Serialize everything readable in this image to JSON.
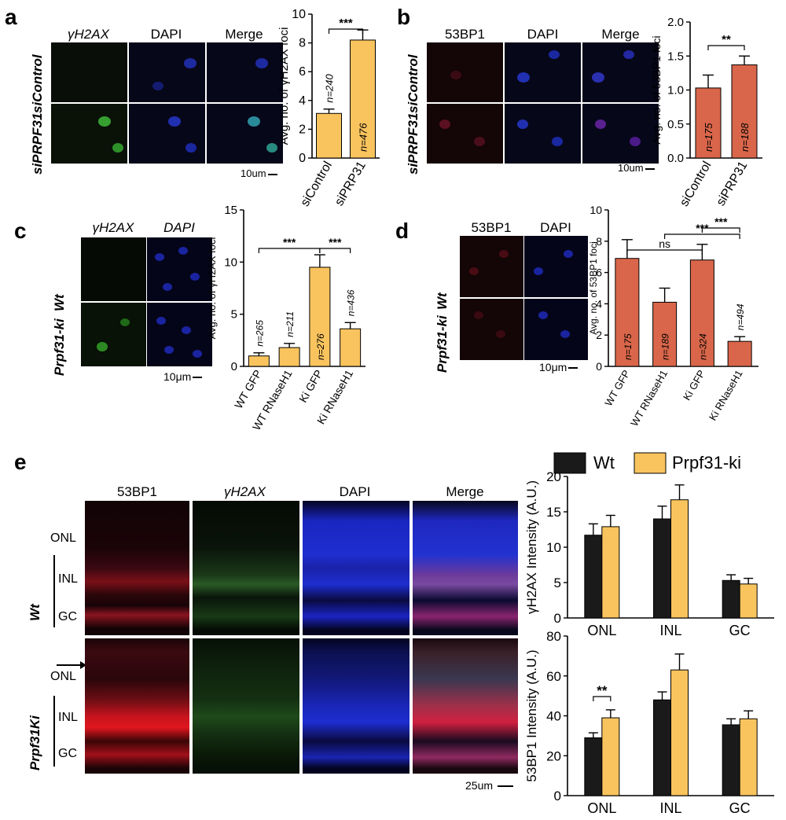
{
  "panel_a": {
    "label": "a",
    "headers": [
      "γH2AX",
      "DAPI",
      "Merge"
    ],
    "rows": [
      "siControl",
      "siPRPF31"
    ],
    "scalebar": "10um"
  },
  "panel_b": {
    "label": "b",
    "headers": [
      "53BP1",
      "DAPI",
      "Merge"
    ],
    "rows": [
      "siControl",
      "siPRPF31"
    ],
    "scalebar": "10um"
  },
  "panel_c": {
    "label": "c",
    "headers": [
      "γH2AX",
      "DAPI"
    ],
    "rows": [
      "Wt",
      "Prpf31-ki"
    ],
    "scalebar": "10μm"
  },
  "panel_d": {
    "label": "d",
    "headers": [
      "53BP1",
      "DAPI"
    ],
    "rows": [
      "Wt",
      "Prpf31-ki"
    ],
    "scalebar": "10μm"
  },
  "panel_e": {
    "label": "e",
    "headers": [
      "53BP1",
      "γH2AX",
      "DAPI",
      "Merge"
    ],
    "rows": [
      "Wt",
      "Prpf31Ki"
    ],
    "layers": [
      "ONL",
      "INL",
      "GC"
    ],
    "scalebar": "25um"
  },
  "chart_data": [
    {
      "type": "bar",
      "panel": "a",
      "categories": [
        "siControl",
        "siPRP31"
      ],
      "values": [
        3.1,
        8.2
      ],
      "errors": [
        0.3,
        0.7
      ],
      "n_labels": [
        "n=240",
        "n=476"
      ],
      "ylabel": "Avg. no. of γH2AX foci",
      "ylim": [
        0,
        10
      ],
      "yticks": [
        0,
        2,
        4,
        6,
        8,
        10
      ],
      "significance": [
        {
          "from": 0,
          "to": 1,
          "label": "***"
        }
      ],
      "color": "#f9c45e"
    },
    {
      "type": "bar",
      "panel": "b",
      "categories": [
        "siControl",
        "siPRP31"
      ],
      "values": [
        1.03,
        1.37
      ],
      "errors": [
        0.19,
        0.13
      ],
      "n_labels": [
        "n=175",
        "n=188"
      ],
      "ylabel": "Avg. no. of 53BP1 foci",
      "ylim": [
        0,
        2.0
      ],
      "yticks": [
        0.0,
        0.5,
        1.0,
        1.5,
        2.0
      ],
      "significance": [
        {
          "from": 0,
          "to": 1,
          "label": "**"
        }
      ],
      "color": "#d9664a"
    },
    {
      "type": "bar",
      "panel": "c",
      "categories": [
        "WT GFP",
        "WT RNaseH1",
        "Ki GFP",
        "Ki RNaseH1"
      ],
      "values": [
        1.0,
        1.8,
        9.5,
        3.6
      ],
      "errors": [
        0.3,
        0.4,
        1.2,
        0.6
      ],
      "n_labels": [
        "n=265",
        "n=211",
        "n=276",
        "n=436"
      ],
      "ylabel": "Avg. no. of γH2AX foci",
      "ylim": [
        0,
        15
      ],
      "yticks": [
        0,
        5,
        10,
        15
      ],
      "significance": [
        {
          "from": 0,
          "to": 2,
          "label": "***"
        },
        {
          "from": 2,
          "to": 3,
          "label": "***"
        }
      ],
      "color": "#f9c45e"
    },
    {
      "type": "bar",
      "panel": "d",
      "categories": [
        "WT GFP",
        "WT RNaseH1",
        "Ki GFP",
        "Ki RNaseH1"
      ],
      "values": [
        6.9,
        4.1,
        6.8,
        1.6
      ],
      "errors": [
        1.2,
        0.9,
        1.0,
        0.3
      ],
      "n_labels": [
        "n=175",
        "n=189",
        "n=324",
        "n=494"
      ],
      "ylabel": "Avg. no. of 53BP1 foci",
      "ylim": [
        0,
        10
      ],
      "yticks": [
        0,
        2,
        4,
        6,
        8,
        10
      ],
      "significance": [
        {
          "from": 0,
          "to": 2,
          "label": "ns"
        },
        {
          "from": 1,
          "to": 3,
          "label": "***"
        },
        {
          "from": 2,
          "to": 3,
          "label": "***"
        }
      ],
      "color": "#d9664a"
    },
    {
      "type": "bar",
      "panel": "e-top",
      "categories": [
        "ONL",
        "INL",
        "GC"
      ],
      "series": [
        {
          "name": "Wt",
          "values": [
            11.7,
            14.0,
            5.3
          ],
          "errors": [
            1.6,
            1.8,
            0.8
          ],
          "color": "#1a1a1a"
        },
        {
          "name": "Prpf31-ki",
          "values": [
            12.9,
            16.7,
            4.8
          ],
          "errors": [
            1.6,
            2.1,
            0.8
          ],
          "color": "#f9c45e"
        }
      ],
      "ylabel": "γH2AX Intensity (A.U.)",
      "ylim": [
        0,
        20
      ],
      "yticks": [
        0,
        5,
        10,
        15,
        20
      ],
      "legend": "top"
    },
    {
      "type": "bar",
      "panel": "e-bottom",
      "categories": [
        "ONL",
        "INL",
        "GC"
      ],
      "series": [
        {
          "name": "Wt",
          "values": [
            29,
            48,
            35.5
          ],
          "errors": [
            2.5,
            4,
            3
          ],
          "color": "#1a1a1a"
        },
        {
          "name": "Prpf31-ki",
          "values": [
            39,
            63,
            38.5
          ],
          "errors": [
            4,
            8,
            4
          ],
          "color": "#f9c45e"
        }
      ],
      "ylabel": "53BP1 Intensity (A.U.)",
      "ylim": [
        0,
        80
      ],
      "yticks": [
        0,
        20,
        40,
        60,
        80
      ],
      "significance": [
        {
          "category": 0,
          "label": "**"
        }
      ]
    }
  ]
}
